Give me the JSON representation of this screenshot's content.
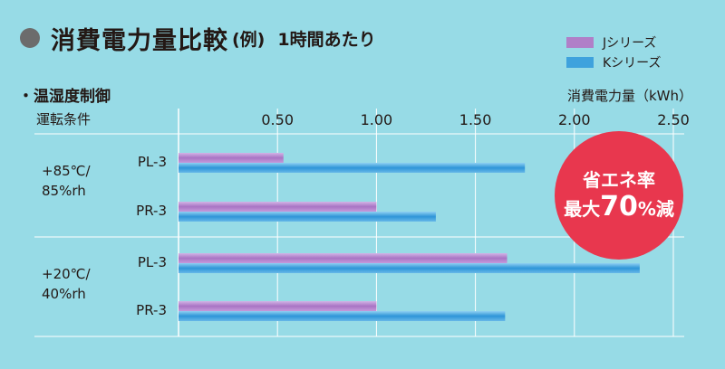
{
  "title": {
    "main": "消費電力量比較",
    "paren": "(例)",
    "sub": "1時間あたり"
  },
  "legend": [
    {
      "name": "Jシリーズ",
      "color": "#b07fc8"
    },
    {
      "name": "Kシリーズ",
      "color": "#3ea2dd"
    }
  ],
  "subheading": "・温湿度制御",
  "condition_header": "運転条件",
  "conditions": [
    {
      "line1": "+85℃/",
      "line2": "85%rh"
    },
    {
      "line1": "+20℃/",
      "line2": "40%rh"
    }
  ],
  "badge": {
    "line1": "省エネ率",
    "line2_prefix": "最大",
    "line2_big": "70",
    "line2_suffix": "%減"
  },
  "chart_data": {
    "type": "bar",
    "orientation": "horizontal",
    "categories": [
      "PL-3",
      "PR-3",
      "PL-3",
      "PR-3"
    ],
    "series": [
      {
        "name": "Jシリーズ",
        "values": [
          0.53,
          1.0,
          1.66,
          1.0
        ]
      },
      {
        "name": "Kシリーズ",
        "values": [
          1.75,
          1.3,
          2.33,
          1.65
        ]
      }
    ],
    "xlabel": "消費電力量（kWh）",
    "xticks": [
      "0.50",
      "1.00",
      "1.50",
      "2.00",
      "2.50"
    ],
    "xlim": [
      0,
      2.5
    ],
    "grid": true,
    "legend_position": "top-right"
  }
}
